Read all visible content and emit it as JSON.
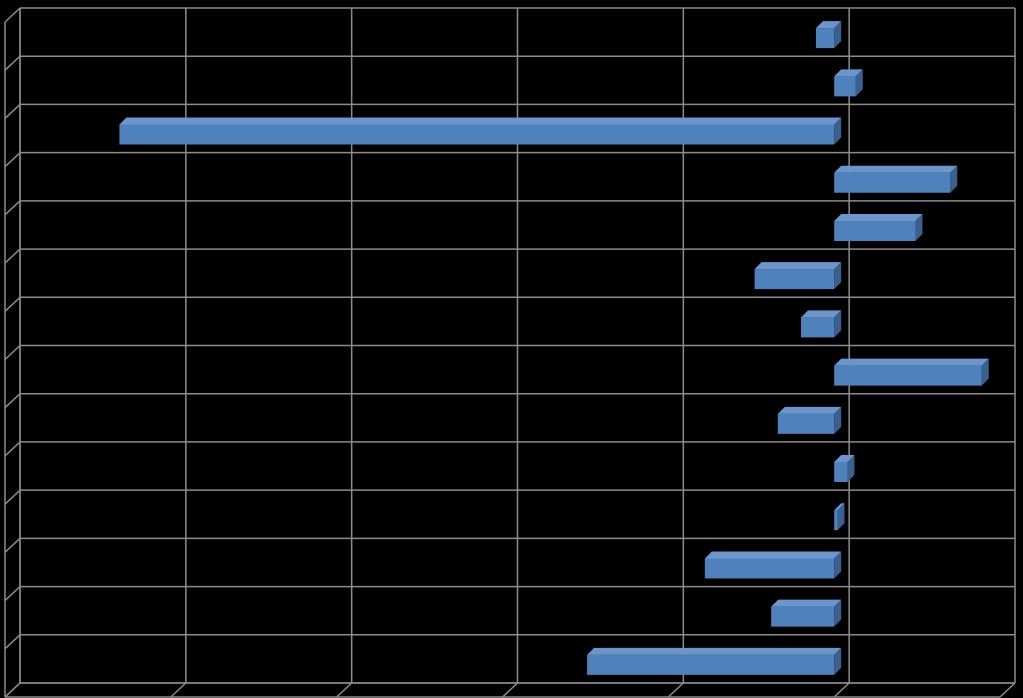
{
  "chart_data": {
    "type": "bar",
    "orientation": "horizontal",
    "three_d": true,
    "categories": [
      null,
      null,
      null,
      null,
      null,
      null,
      null,
      null,
      null,
      null,
      null,
      null,
      null,
      null
    ],
    "values": [
      -0.11,
      0.13,
      -4.31,
      0.7,
      0.49,
      -0.48,
      -0.2,
      0.89,
      -0.34,
      0.08,
      0.02,
      -0.78,
      -0.38,
      -1.49
    ],
    "color": "#4f81bd",
    "xlim": [
      -5,
      1
    ],
    "xticks": [
      -5,
      -4,
      -3,
      -2,
      -1,
      0,
      1
    ],
    "grid": true
  }
}
